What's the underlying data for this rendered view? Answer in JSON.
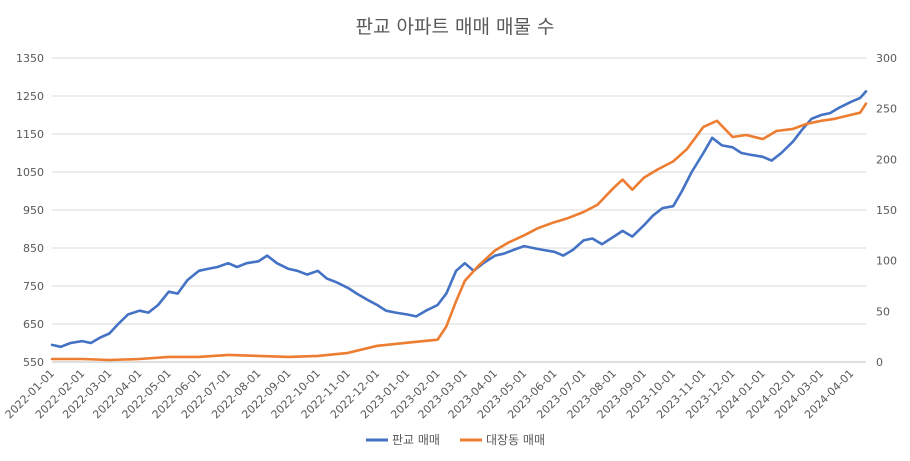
{
  "chart_data": {
    "type": "line",
    "title": "판교 아파트 매매 매물 수",
    "x_ticks": [
      "2022-01-01",
      "2022-02-01",
      "2022-03-01",
      "2022-04-01",
      "2022-05-01",
      "2022-06-01",
      "2022-07-01",
      "2022-08-01",
      "2022-09-01",
      "2022-10-01",
      "2022-11-01",
      "2022-12-01",
      "2023-01-01",
      "2023-02-01",
      "2023-03-01",
      "2023-04-01",
      "2023-05-01",
      "2023-06-01",
      "2023-07-01",
      "2023-08-01",
      "2023-09-01",
      "2023-10-01",
      "2023-11-01",
      "2023-12-01",
      "2024-01-01",
      "2024-02-01",
      "2024-03-01",
      "2024-04-01"
    ],
    "x_range": [
      "2022-01-01",
      "2024-04-16"
    ],
    "y_left": {
      "min": 550,
      "max": 1350,
      "ticks": [
        550,
        650,
        750,
        850,
        950,
        1050,
        1150,
        1250,
        1350
      ]
    },
    "y_right": {
      "min": 0,
      "max": 300,
      "ticks": [
        0,
        50,
        100,
        150,
        200,
        250,
        300
      ]
    },
    "grid": true,
    "legend_position": "bottom",
    "series": [
      {
        "name": "판교 매매",
        "axis": "left",
        "color": "#4472c4",
        "points": [
          [
            "2022-01-01",
            595
          ],
          [
            "2022-01-10",
            590
          ],
          [
            "2022-01-20",
            600
          ],
          [
            "2022-02-01",
            605
          ],
          [
            "2022-02-10",
            600
          ],
          [
            "2022-02-20",
            615
          ],
          [
            "2022-03-01",
            625
          ],
          [
            "2022-03-10",
            650
          ],
          [
            "2022-03-20",
            675
          ],
          [
            "2022-04-01",
            685
          ],
          [
            "2022-04-10",
            680
          ],
          [
            "2022-04-20",
            700
          ],
          [
            "2022-05-01",
            735
          ],
          [
            "2022-05-10",
            730
          ],
          [
            "2022-05-20",
            765
          ],
          [
            "2022-06-01",
            790
          ],
          [
            "2022-06-10",
            795
          ],
          [
            "2022-06-20",
            800
          ],
          [
            "2022-07-01",
            810
          ],
          [
            "2022-07-10",
            800
          ],
          [
            "2022-07-20",
            810
          ],
          [
            "2022-08-01",
            815
          ],
          [
            "2022-08-10",
            830
          ],
          [
            "2022-08-20",
            810
          ],
          [
            "2022-09-01",
            795
          ],
          [
            "2022-09-10",
            790
          ],
          [
            "2022-09-20",
            780
          ],
          [
            "2022-10-01",
            790
          ],
          [
            "2022-10-10",
            770
          ],
          [
            "2022-10-20",
            760
          ],
          [
            "2022-11-01",
            745
          ],
          [
            "2022-11-10",
            730
          ],
          [
            "2022-11-20",
            715
          ],
          [
            "2022-12-01",
            700
          ],
          [
            "2022-12-10",
            685
          ],
          [
            "2022-12-20",
            680
          ],
          [
            "2023-01-01",
            675
          ],
          [
            "2023-01-10",
            670
          ],
          [
            "2023-01-20",
            685
          ],
          [
            "2023-02-01",
            700
          ],
          [
            "2023-02-10",
            730
          ],
          [
            "2023-02-20",
            790
          ],
          [
            "2023-03-01",
            810
          ],
          [
            "2023-03-10",
            790
          ],
          [
            "2023-03-20",
            810
          ],
          [
            "2023-04-01",
            830
          ],
          [
            "2023-04-10",
            835
          ],
          [
            "2023-04-20",
            845
          ],
          [
            "2023-05-01",
            855
          ],
          [
            "2023-05-10",
            850
          ],
          [
            "2023-05-20",
            845
          ],
          [
            "2023-06-01",
            840
          ],
          [
            "2023-06-10",
            830
          ],
          [
            "2023-06-20",
            845
          ],
          [
            "2023-07-01",
            870
          ],
          [
            "2023-07-10",
            875
          ],
          [
            "2023-07-20",
            860
          ],
          [
            "2023-08-01",
            880
          ],
          [
            "2023-08-10",
            895
          ],
          [
            "2023-08-20",
            880
          ],
          [
            "2023-09-01",
            910
          ],
          [
            "2023-09-10",
            935
          ],
          [
            "2023-09-20",
            955
          ],
          [
            "2023-10-01",
            960
          ],
          [
            "2023-10-10",
            1000
          ],
          [
            "2023-10-20",
            1050
          ],
          [
            "2023-11-01",
            1100
          ],
          [
            "2023-11-10",
            1140
          ],
          [
            "2023-11-20",
            1120
          ],
          [
            "2023-12-01",
            1115
          ],
          [
            "2023-12-10",
            1100
          ],
          [
            "2023-12-20",
            1095
          ],
          [
            "2024-01-01",
            1090
          ],
          [
            "2024-01-10",
            1080
          ],
          [
            "2024-01-20",
            1100
          ],
          [
            "2024-02-01",
            1130
          ],
          [
            "2024-02-10",
            1160
          ],
          [
            "2024-02-20",
            1190
          ],
          [
            "2024-03-01",
            1200
          ],
          [
            "2024-03-10",
            1205
          ],
          [
            "2024-03-20",
            1220
          ],
          [
            "2024-04-01",
            1235
          ],
          [
            "2024-04-10",
            1245
          ],
          [
            "2024-04-16",
            1262
          ]
        ]
      },
      {
        "name": "대장동 매매",
        "axis": "right",
        "color": "#ed7d31",
        "points": [
          [
            "2022-01-01",
            3
          ],
          [
            "2022-02-01",
            3
          ],
          [
            "2022-03-01",
            2
          ],
          [
            "2022-04-01",
            3
          ],
          [
            "2022-05-01",
            5
          ],
          [
            "2022-06-01",
            5
          ],
          [
            "2022-07-01",
            7
          ],
          [
            "2022-08-01",
            6
          ],
          [
            "2022-09-01",
            5
          ],
          [
            "2022-10-01",
            6
          ],
          [
            "2022-11-01",
            9
          ],
          [
            "2022-12-01",
            16
          ],
          [
            "2023-01-01",
            19
          ],
          [
            "2023-02-01",
            22
          ],
          [
            "2023-02-10",
            35
          ],
          [
            "2023-02-20",
            60
          ],
          [
            "2023-03-01",
            80
          ],
          [
            "2023-03-15",
            95
          ],
          [
            "2023-04-01",
            110
          ],
          [
            "2023-04-15",
            118
          ],
          [
            "2023-05-01",
            125
          ],
          [
            "2023-05-15",
            132
          ],
          [
            "2023-06-01",
            138
          ],
          [
            "2023-06-15",
            142
          ],
          [
            "2023-07-01",
            148
          ],
          [
            "2023-07-15",
            155
          ],
          [
            "2023-08-01",
            172
          ],
          [
            "2023-08-10",
            180
          ],
          [
            "2023-08-20",
            170
          ],
          [
            "2023-09-01",
            182
          ],
          [
            "2023-09-15",
            190
          ],
          [
            "2023-10-01",
            198
          ],
          [
            "2023-10-15",
            210
          ],
          [
            "2023-11-01",
            232
          ],
          [
            "2023-11-15",
            238
          ],
          [
            "2023-12-01",
            222
          ],
          [
            "2023-12-15",
            224
          ],
          [
            "2024-01-01",
            220
          ],
          [
            "2024-01-15",
            228
          ],
          [
            "2024-02-01",
            230
          ],
          [
            "2024-02-15",
            235
          ],
          [
            "2024-03-01",
            238
          ],
          [
            "2024-03-15",
            240
          ],
          [
            "2024-04-01",
            244
          ],
          [
            "2024-04-10",
            246
          ],
          [
            "2024-04-16",
            255
          ]
        ]
      }
    ]
  }
}
